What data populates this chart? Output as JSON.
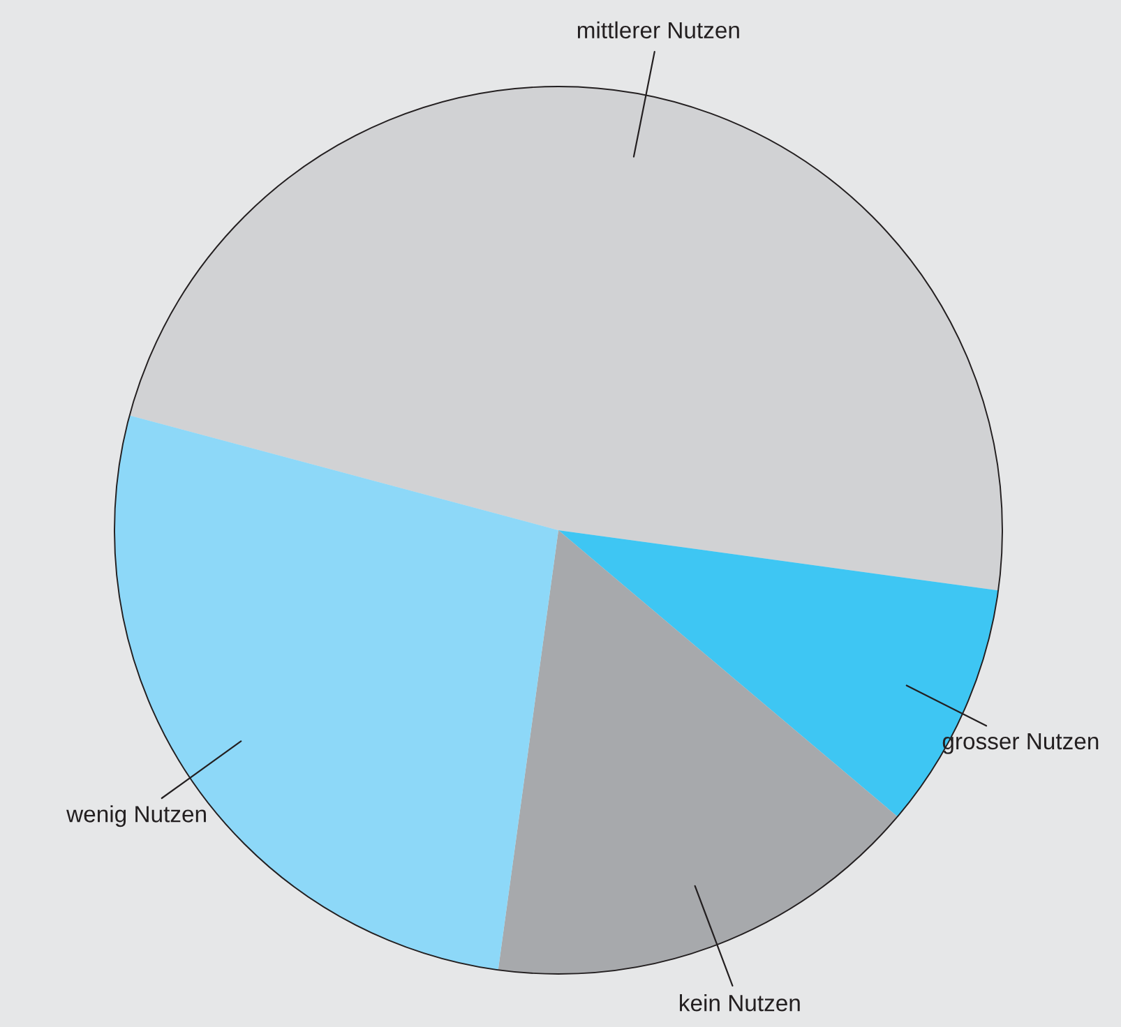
{
  "chart_data": {
    "type": "pie",
    "categories": [
      "mittlerer Nutzen",
      "grosser Nutzen",
      "kein Nutzen",
      "wenig Nutzen"
    ],
    "values": [
      48,
      9,
      16,
      27
    ],
    "colors": [
      "#d1d2d4",
      "#3ec6f3",
      "#a7a9ac",
      "#8dd8f8"
    ]
  }
}
